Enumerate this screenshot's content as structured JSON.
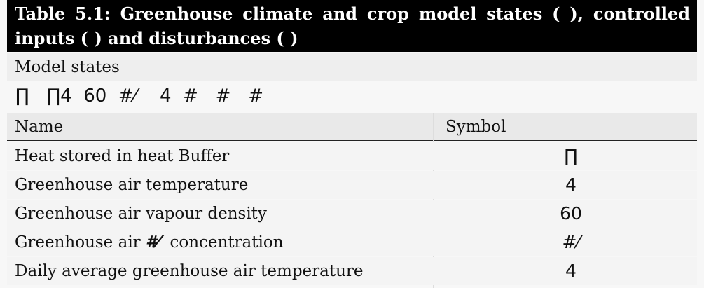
{
  "table": {
    "title": "Table 5.1: Greenhouse climate and crop model states (  ), controlled inputs (  ) and disturbances (  )",
    "section_label": "Model states",
    "symbol_strip": "∏   ∏4  60  #⁄    4  #   #   #",
    "columns": {
      "name": "Name",
      "symbol": "Symbol"
    },
    "rows": [
      {
        "name": "Heat stored in heat Buffer",
        "symbol": "∏"
      },
      {
        "name": "Greenhouse air temperature",
        "symbol": "4"
      },
      {
        "name": "Greenhouse air vapour density",
        "symbol": "60"
      },
      {
        "name_before": "Greenhouse air ",
        "name_glyph": "#⁄",
        "name_after": "  concentration",
        "symbol": "#⁄"
      },
      {
        "name": "Daily average greenhouse air temperature",
        "symbol": "4"
      }
    ]
  }
}
